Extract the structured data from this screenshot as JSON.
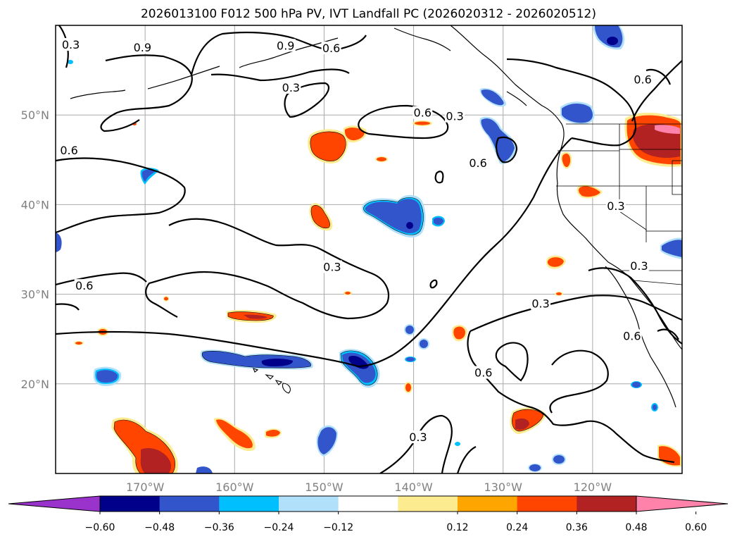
{
  "title": "2026013100 F012 500 hPa PV, IVT Landfall PC (2026020312 - 2026020512)",
  "map": {
    "lon_range": [
      -180,
      -110
    ],
    "lat_range": [
      10,
      60
    ],
    "lon_ticks": [
      {
        "lon": -170,
        "label": "170°W"
      },
      {
        "lon": -160,
        "label": "160°W"
      },
      {
        "lon": -150,
        "label": "150°W"
      },
      {
        "lon": -140,
        "label": "140°W"
      },
      {
        "lon": -130,
        "label": "130°W"
      },
      {
        "lon": -120,
        "label": "120°W"
      }
    ],
    "lat_ticks": [
      {
        "lat": 20,
        "label": "20°N"
      },
      {
        "lat": 30,
        "label": "30°N"
      },
      {
        "lat": 40,
        "label": "40°N"
      },
      {
        "lat": 50,
        "label": "50°N"
      }
    ],
    "contour_labels": [
      {
        "text": "0.9",
        "lon": -170.3,
        "lat": 57.5
      },
      {
        "text": "0.6",
        "lon": -149.2,
        "lat": 57.4
      },
      {
        "text": "0.9",
        "lon": -154.3,
        "lat": 57.7
      },
      {
        "text": "0.3",
        "lon": -153.7,
        "lat": 53.0
      },
      {
        "text": "0.6",
        "lon": -178.5,
        "lat": 46.0
      },
      {
        "text": "0.6",
        "lon": -139.0,
        "lat": 50.2
      },
      {
        "text": "0.3",
        "lon": -135.4,
        "lat": 49.8
      },
      {
        "text": "0.6",
        "lon": -132.8,
        "lat": 44.6
      },
      {
        "text": "0.3",
        "lon": -149.1,
        "lat": 33.0
      },
      {
        "text": "0.6",
        "lon": -176.8,
        "lat": 30.9
      },
      {
        "text": "0.3",
        "lon": -125.8,
        "lat": 28.9
      },
      {
        "text": "0.6",
        "lon": -132.2,
        "lat": 21.2
      },
      {
        "text": "0.6",
        "lon": -115.6,
        "lat": 25.3
      },
      {
        "text": "0.3",
        "lon": -139.5,
        "lat": 14.0
      },
      {
        "text": "0.3",
        "lon": -117.4,
        "lat": 39.8
      },
      {
        "text": "0.3",
        "lon": -114.8,
        "lat": 33.1
      },
      {
        "text": "0.6",
        "lon": -114.4,
        "lat": 53.9
      },
      {
        "text": "0.3",
        "lon": -178.3,
        "lat": 57.8
      }
    ],
    "colors": {
      "neg_060": "#9933cc",
      "neg_048": "#00008b",
      "neg_036": "#3355cc",
      "neg_024": "#00bfff",
      "neg_012": "#b0e0fa",
      "pos_012": "#fcec8f",
      "pos_024": "#ffa500",
      "pos_036": "#ff4500",
      "pos_048": "#b22222",
      "pos_060": "#ff82ab"
    }
  },
  "colorbar": {
    "ticks": [
      "−0.60",
      "−0.48",
      "−0.36",
      "−0.24",
      "−0.12",
      "0.12",
      "0.24",
      "0.36",
      "0.48",
      "0.60"
    ],
    "bins": [
      {
        "color": "#9933cc",
        "label": "< -0.60"
      },
      {
        "color": "#00008b",
        "label": "-0.60 to -0.48"
      },
      {
        "color": "#3355cc",
        "label": "-0.48 to -0.36"
      },
      {
        "color": "#00bfff",
        "label": "-0.36 to -0.24"
      },
      {
        "color": "#b0e0fa",
        "label": "-0.24 to -0.12"
      },
      {
        "color": "#ffffff",
        "label": "-0.12 to 0.12"
      },
      {
        "color": "#fcec8f",
        "label": "0.12 to 0.24"
      },
      {
        "color": "#ffa500",
        "label": "0.24 to 0.36"
      },
      {
        "color": "#ff4500",
        "label": "0.36 to 0.48"
      },
      {
        "color": "#b22222",
        "label": "0.48 to 0.60"
      },
      {
        "color": "#ff82ab",
        "label": "> 0.60"
      }
    ]
  }
}
